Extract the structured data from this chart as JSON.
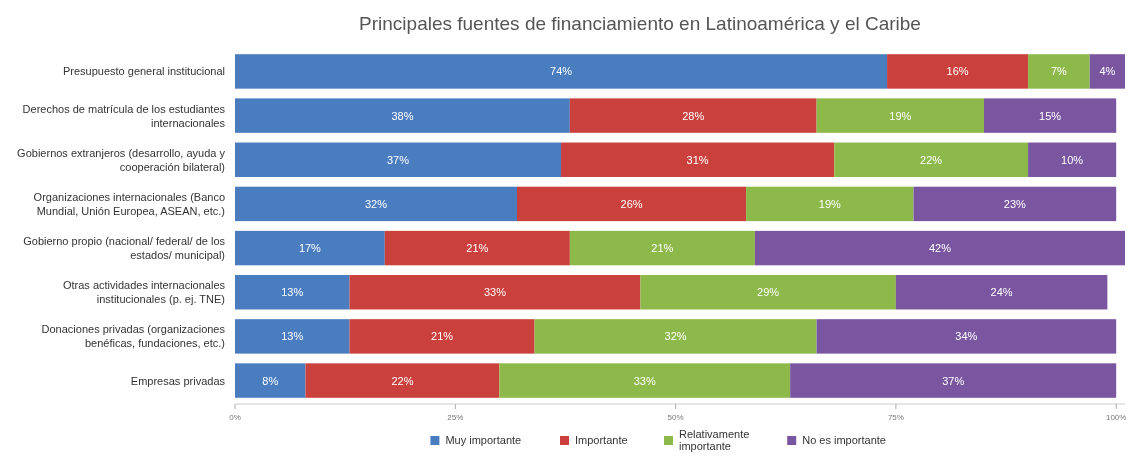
{
  "chart_data": {
    "type": "bar",
    "orientation": "horizontal",
    "stacked": true,
    "title": "Principales fuentes de financiamiento en Latinoamérica y el Caribe",
    "categories": [
      "Presupuesto general institucional",
      "Derechos de matrícula de los estudiantes internacionales",
      "Gobiernos extranjeros (desarrollo, ayuda y cooperación bilateral)",
      "Organizaciones internacionales (Banco Mundial, Unión Europea, ASEAN, etc.)",
      "Gobierno propio (nacional/ federal/ de los estados/ municipal)",
      "Otras actividades internacionales institucionales (p. ej. TNE)",
      "Donaciones privadas (organizaciones benéficas, fundaciones, etc.)",
      "Empresas privadas"
    ],
    "series": [
      {
        "name": "Muy importante",
        "color": "#4a7cc0",
        "values": [
          74,
          38,
          37,
          32,
          17,
          13,
          13,
          8
        ],
        "value_labels": [
          "74%",
          "38%",
          "37%",
          "32%",
          "17%",
          "13%",
          "13%",
          "8%"
        ]
      },
      {
        "name": "Importante",
        "color": "#c9403c",
        "values": [
          16,
          28,
          31,
          26,
          21,
          33,
          21,
          22
        ],
        "value_labels": [
          "16%",
          "28%",
          "31%",
          "26%",
          "21%",
          "33%",
          "21%",
          "22%"
        ]
      },
      {
        "name": "Relativamente importante",
        "color": "#8db84a",
        "values": [
          7,
          19,
          22,
          19,
          21,
          29,
          32,
          33
        ],
        "value_labels": [
          "7%",
          "19%",
          "22%",
          "19%",
          "21%",
          "29%",
          "32%",
          "33%"
        ]
      },
      {
        "name": "No es importante",
        "color": "#7a56a0",
        "values": [
          4,
          15,
          10,
          23,
          42,
          24,
          34,
          37
        ],
        "value_labels": [
          "4%",
          "15%",
          "10%",
          "23%",
          "42%",
          "24%",
          "34%",
          "37%"
        ]
      }
    ],
    "xlim": [
      0,
      101
    ],
    "xticks": [
      {
        "value": 0,
        "label": "0%"
      },
      {
        "value": 25,
        "label": "25%"
      },
      {
        "value": 50,
        "label": "50%"
      },
      {
        "value": 75,
        "label": "75%"
      },
      {
        "value": 100,
        "label": "100%"
      }
    ],
    "legend": "bottom"
  }
}
